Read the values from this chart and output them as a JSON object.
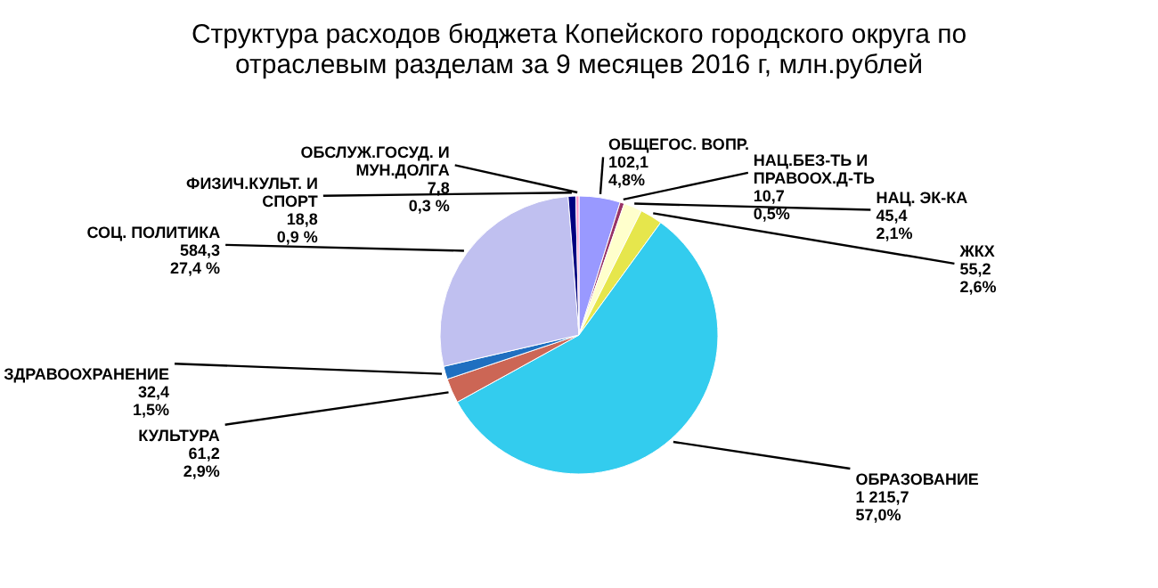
{
  "chart_data": {
    "type": "pie",
    "title": "Структура расходов бюджета Копейского городского округа по отраслевым разделам за 9 месяцев 2016 г, млн.рублей",
    "categories": [
      "ОБЩЕГОС. ВОПР.",
      "НАЦ.БЕЗ-ТЬ И ПРАВООХ.Д-ТЬ",
      "НАЦ. ЭК-КА",
      "ЖКХ",
      "ОБРАЗОВАНИЕ",
      "КУЛЬТУРА",
      "ЗДРАВООХРАНЕНИЕ",
      "СОЦ. ПОЛИТИКА",
      "ФИЗИЧ.КУЛЬТ. И СПОРТ",
      "ОБСЛУЖ.ГОСУД. И МУН.ДОЛГА"
    ],
    "values": [
      102.1,
      10.7,
      45.4,
      55.2,
      1215.7,
      61.2,
      32.4,
      584.3,
      18.8,
      7.8
    ],
    "value_labels": [
      "102,1\n4,8%",
      "10,7\n0,5%",
      "45,4\n2,1%",
      "55,2\n2,6%",
      "1 215,7\n57,0%",
      "61,2\n2,9%",
      "32,4\n1,5%",
      "584,3\n27,4 %",
      "18,8\n0,9 %",
      "7,8\n0,3 %"
    ],
    "colors": [
      "#9999ff",
      "#993366",
      "#ffffcc",
      "#e6e64c",
      "#33ccee",
      "#cc6655",
      "#1f6fc0",
      "#c0c0f0",
      "#000080",
      "#ff99cc"
    ],
    "legend": false
  }
}
